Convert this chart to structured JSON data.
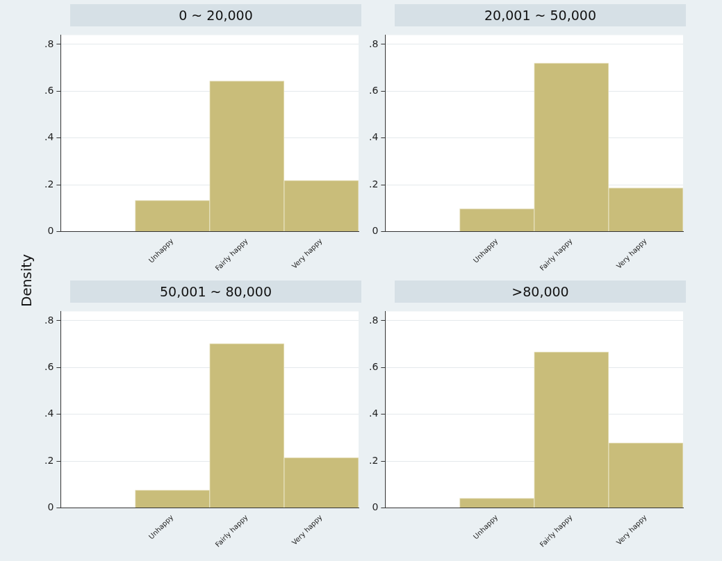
{
  "chart_data": [
    {
      "type": "bar",
      "title": "0 ~ 20,000",
      "ylabel": "Density",
      "categories": [
        null,
        "Unhappy",
        "Fairly happy",
        "Very happy"
      ],
      "values": [
        null,
        0.133,
        0.644,
        0.219
      ],
      "color": "#c9bd7a",
      "ylim": [
        0,
        0.84
      ],
      "yticks": [
        {
          "value": 0,
          "label": "0"
        },
        {
          "value": 0.2,
          "label": ".2"
        },
        {
          "value": 0.4,
          "label": ".4"
        },
        {
          "value": 0.6,
          "label": ".6"
        },
        {
          "value": 0.8,
          "label": ".8"
        }
      ],
      "grid": "y"
    },
    {
      "type": "bar",
      "title": "20,001 ~ 50,000",
      "categories": [
        null,
        "Unhappy",
        "Fairly happy",
        "Very happy"
      ],
      "values": [
        null,
        0.098,
        0.72,
        0.187
      ],
      "color": "#c9bd7a",
      "ylim": [
        0,
        0.84
      ],
      "yticks": [
        {
          "value": 0,
          "label": "0"
        },
        {
          "value": 0.2,
          "label": ".2"
        },
        {
          "value": 0.4,
          "label": ".4"
        },
        {
          "value": 0.6,
          "label": ".6"
        },
        {
          "value": 0.8,
          "label": ".8"
        }
      ],
      "grid": "y"
    },
    {
      "type": "bar",
      "title": "50,001 ~ 80,000",
      "categories": [
        null,
        "Unhappy",
        "Fairly happy",
        "Very happy"
      ],
      "values": [
        null,
        0.076,
        0.702,
        0.215
      ],
      "color": "#c9bd7a",
      "ylim": [
        0,
        0.84
      ],
      "yticks": [
        {
          "value": 0,
          "label": "0"
        },
        {
          "value": 0.2,
          "label": ".2"
        },
        {
          "value": 0.4,
          "label": ".4"
        },
        {
          "value": 0.6,
          "label": ".6"
        },
        {
          "value": 0.8,
          "label": ".8"
        }
      ],
      "grid": "y"
    },
    {
      "type": "bar",
      "title": ">80,000",
      "categories": [
        null,
        "Unhappy",
        "Fairly happy",
        "Very happy"
      ],
      "values": [
        null,
        0.041,
        0.667,
        0.278
      ],
      "color": "#c9bd7a",
      "ylim": [
        0,
        0.84
      ],
      "yticks": [
        {
          "value": 0,
          "label": "0"
        },
        {
          "value": 0.2,
          "label": ".2"
        },
        {
          "value": 0.4,
          "label": ".4"
        },
        {
          "value": 0.6,
          "label": ".6"
        },
        {
          "value": 0.8,
          "label": ".8"
        }
      ],
      "grid": "y"
    }
  ]
}
